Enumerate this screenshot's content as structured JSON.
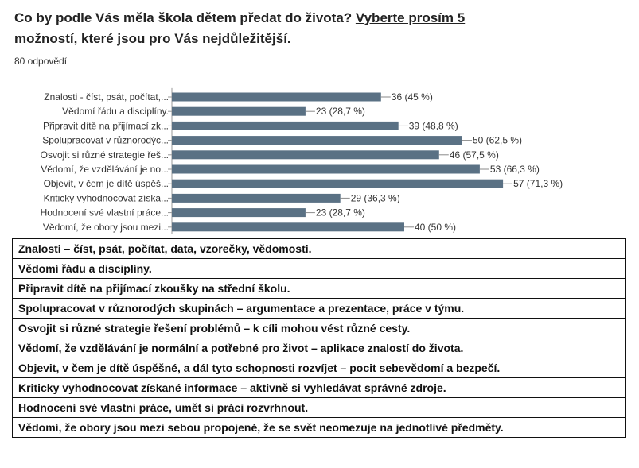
{
  "question": {
    "prefix": "Co by podle Vás měla škola dětem předat do života? ",
    "underlined": "Vyberte prosím 5 možností",
    "suffix": ", které jsou pro Vás nejdůležitější."
  },
  "responses": "80 odpovědí",
  "chart_data": {
    "type": "bar",
    "orientation": "horizontal",
    "title": "Co by podle Vás měla škola dětem předat do života? Vyberte prosím 5 možností, které jsou pro Vás nejdůležitější.",
    "total_responses": 80,
    "categories": [
      "Znalosti - číst, psát, počítat,...",
      "Vědomí řádu a disciplíny.",
      "Připravit dítě na přijímací zk...",
      "Spolupracovat v různorodýc...",
      "Osvojit si různé strategie řeš...",
      "Vědomí, že vzdělávání je no...",
      "Objevit, v čem je dítě úspěš...",
      "Kriticky vyhodnocovat získa...",
      "Hodnocení své vlastní práce...",
      "Vědomí, že obory jsou mezi..."
    ],
    "values": [
      36,
      23,
      39,
      50,
      46,
      53,
      57,
      29,
      23,
      40
    ],
    "value_labels": [
      "36 (45 %)",
      "23 (28,7 %)",
      "39 (48,8 %)",
      "50 (62,5 %)",
      "46 (57,5 %)",
      "53 (66,3 %)",
      "57 (71,3 %)",
      "29 (36,3 %)",
      "23 (28,7 %)",
      "40 (50 %)"
    ],
    "xlim": [
      0,
      80
    ],
    "bar_color": "#5a7184",
    "axis_color": "#999999",
    "gridlines": false
  },
  "legend": [
    "Znalosti – číst, psát, počítat, data, vzorečky, vědomosti.",
    "Vědomí řádu a disciplíny.",
    "Připravit dítě na přijímací zkoušky na střední školu.",
    "Spolupracovat v různorodých skupinách – argumentace a prezentace, práce v týmu.",
    "Osvojit si různé strategie řešení problémů – k cíli mohou vést různé cesty.",
    "Vědomí, že vzdělávání je normální a potřebné pro život – aplikace znalostí do života.",
    "Objevit, v čem je dítě úspěšné, a dál tyto schopnosti rozvíjet – pocit sebevědomí a bezpečí.",
    "Kriticky vyhodnocovat získané informace – aktivně si vyhledávat správné zdroje.",
    "Hodnocení své vlastní práce, umět si práci rozvrhnout.",
    "Vědomí, že obory jsou mezi sebou propojené, že se svět neomezuje na jednotlivé předměty."
  ]
}
